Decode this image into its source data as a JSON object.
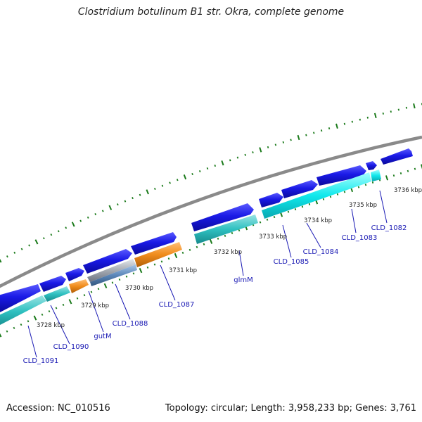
{
  "title": "Clostridium botulinum B1 str. Okra, complete genome",
  "footer": {
    "accession": "Accession: NC_010516",
    "summary": "Topology: circular; Length: 3,958,233 bp; Genes: 3,761"
  },
  "colors": {
    "backbone": "#8a8a8a",
    "tick": "#1a7a1a",
    "cds": "#1414e0",
    "cds_highlight": "#00e5e5",
    "teal": "#2cbcbc",
    "orange": "#f08c1c",
    "gray_feature": "#9aa0a8",
    "steelblue": "#5a86b8",
    "gene_label": "#1a1ab4",
    "scale_label": "#222222"
  },
  "scale_labels": [
    "3728 kbp",
    "3729 kbp",
    "3730 kbp",
    "3731 kbp",
    "3732 kbp",
    "3733 kbp",
    "3734 kbp",
    "3735 kbp",
    "3736 kbp"
  ],
  "gene_labels": [
    "CLD_1091",
    "CLD_1090",
    "gutM",
    "CLD_1088",
    "CLD_1087",
    "glmM",
    "CLD_1085",
    "CLD_1084",
    "CLD_1083",
    "CLD_1082"
  ]
}
